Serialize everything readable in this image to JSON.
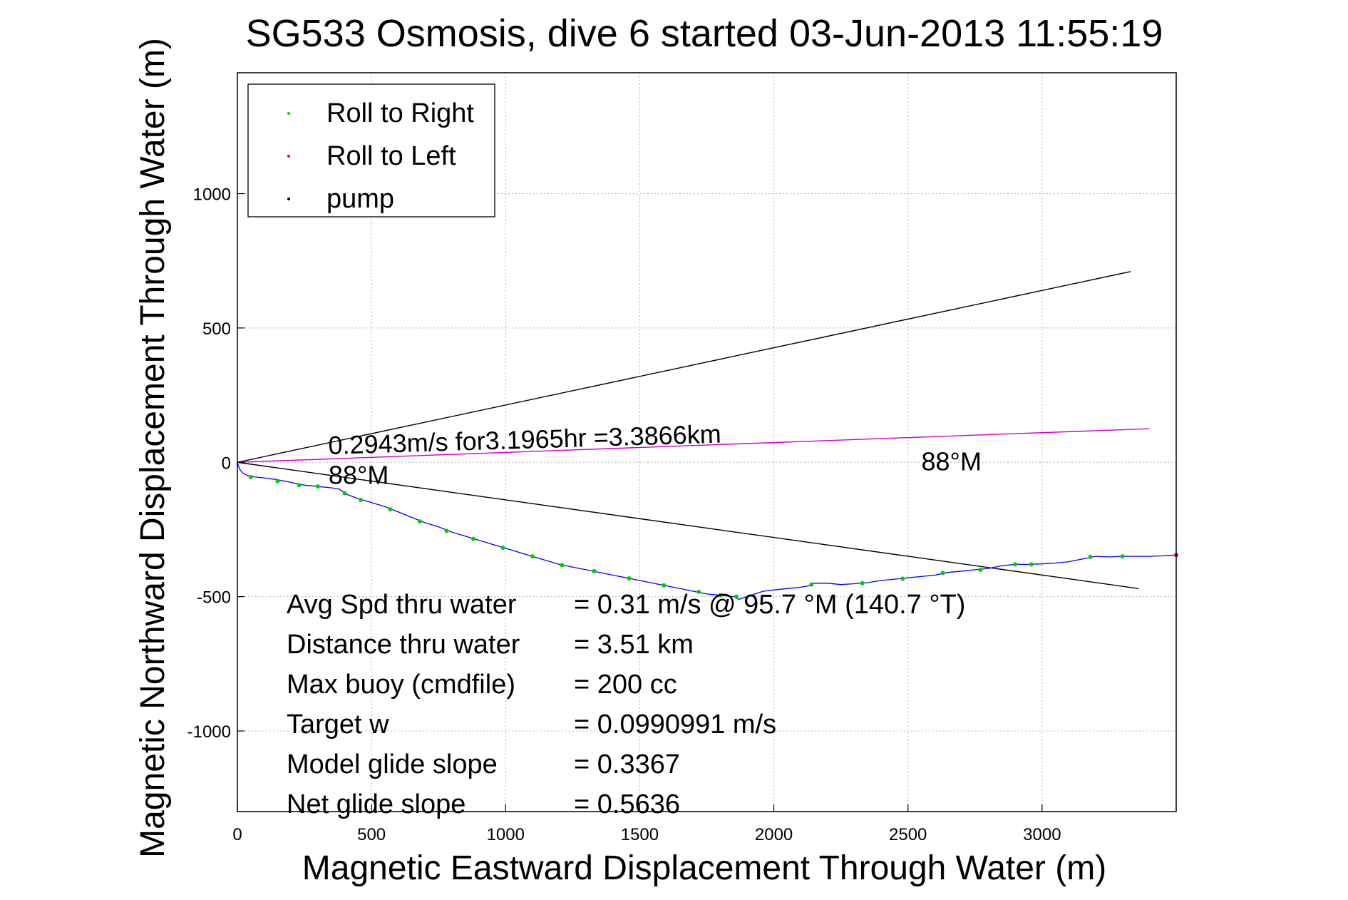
{
  "chart_data": {
    "type": "scatter",
    "title": "SG533 Osmosis, dive 6 started 03-Jun-2013 11:55:19",
    "xlabel": "Magnetic Eastward Displacement Through Water (m)",
    "ylabel": "Magnetic Northward Displacement Through Water (m)",
    "xlim": [
      0,
      3500
    ],
    "ylim": [
      -1300,
      1450
    ],
    "xticks": [
      0,
      500,
      1000,
      1500,
      2000,
      2500,
      3000
    ],
    "yticks": [
      -1000,
      -500,
      0,
      500,
      1000
    ],
    "grid": true,
    "legend_position": "top-left",
    "legend": [
      {
        "label": "Roll to Right",
        "color": "#00cc00"
      },
      {
        "label": "Roll to Left",
        "color": "#ff0000"
      },
      {
        "label": "pump",
        "color": "#000000"
      }
    ],
    "track": {
      "color": "#0000ff",
      "points": [
        [
          0,
          0
        ],
        [
          8,
          -25
        ],
        [
          20,
          -40
        ],
        [
          40,
          -50
        ],
        [
          70,
          -55
        ],
        [
          100,
          -58
        ],
        [
          150,
          -65
        ],
        [
          200,
          -75
        ],
        [
          250,
          -85
        ],
        [
          300,
          -90
        ],
        [
          350,
          -95
        ],
        [
          380,
          -100
        ],
        [
          410,
          -120
        ],
        [
          450,
          -135
        ],
        [
          500,
          -150
        ],
        [
          550,
          -165
        ],
        [
          600,
          -185
        ],
        [
          650,
          -205
        ],
        [
          700,
          -225
        ],
        [
          750,
          -240
        ],
        [
          800,
          -260
        ],
        [
          850,
          -275
        ],
        [
          900,
          -290
        ],
        [
          950,
          -305
        ],
        [
          1000,
          -320
        ],
        [
          1050,
          -335
        ],
        [
          1100,
          -350
        ],
        [
          1150,
          -365
        ],
        [
          1200,
          -380
        ],
        [
          1250,
          -390
        ],
        [
          1300,
          -400
        ],
        [
          1350,
          -410
        ],
        [
          1400,
          -420
        ],
        [
          1450,
          -430
        ],
        [
          1500,
          -440
        ],
        [
          1550,
          -450
        ],
        [
          1600,
          -460
        ],
        [
          1650,
          -470
        ],
        [
          1700,
          -480
        ],
        [
          1750,
          -490
        ],
        [
          1800,
          -495
        ],
        [
          1850,
          -500
        ],
        [
          1870,
          -510
        ],
        [
          1900,
          -500
        ],
        [
          1930,
          -490
        ],
        [
          1960,
          -480
        ],
        [
          2000,
          -475
        ],
        [
          2050,
          -470
        ],
        [
          2100,
          -465
        ],
        [
          2130,
          -460
        ],
        [
          2150,
          -450
        ],
        [
          2200,
          -450
        ],
        [
          2250,
          -455
        ],
        [
          2300,
          -452
        ],
        [
          2350,
          -448
        ],
        [
          2400,
          -440
        ],
        [
          2450,
          -435
        ],
        [
          2500,
          -430
        ],
        [
          2550,
          -425
        ],
        [
          2600,
          -420
        ],
        [
          2650,
          -410
        ],
        [
          2700,
          -405
        ],
        [
          2750,
          -400
        ],
        [
          2800,
          -395
        ],
        [
          2850,
          -385
        ],
        [
          2900,
          -380
        ],
        [
          2950,
          -380
        ],
        [
          3000,
          -378
        ],
        [
          3050,
          -375
        ],
        [
          3100,
          -370
        ],
        [
          3150,
          -360
        ],
        [
          3200,
          -350
        ],
        [
          3250,
          -352
        ],
        [
          3300,
          -350
        ],
        [
          3350,
          -350
        ],
        [
          3400,
          -350
        ],
        [
          3450,
          -348
        ],
        [
          3500,
          -345
        ]
      ]
    },
    "roll_right_markers": [
      [
        50,
        -55
      ],
      [
        150,
        -70
      ],
      [
        230,
        -85
      ],
      [
        300,
        -90
      ],
      [
        400,
        -115
      ],
      [
        460,
        -140
      ],
      [
        570,
        -175
      ],
      [
        680,
        -220
      ],
      [
        780,
        -255
      ],
      [
        880,
        -285
      ],
      [
        990,
        -318
      ],
      [
        1100,
        -350
      ],
      [
        1210,
        -383
      ],
      [
        1330,
        -405
      ],
      [
        1460,
        -432
      ],
      [
        1590,
        -458
      ],
      [
        1720,
        -482
      ],
      [
        1800,
        -495
      ],
      [
        1860,
        -500
      ],
      [
        2140,
        -455
      ],
      [
        2330,
        -450
      ],
      [
        2480,
        -433
      ],
      [
        2630,
        -412
      ],
      [
        2770,
        -400
      ],
      [
        2900,
        -380
      ],
      [
        2960,
        -380
      ],
      [
        3180,
        -352
      ],
      [
        3300,
        -350
      ]
    ],
    "roll_left_markers": [
      [
        3500,
        -345
      ]
    ],
    "lines": [
      {
        "name": "upper bound",
        "color": "#000000",
        "x": [
          0,
          3330
        ],
        "y": [
          0,
          710
        ]
      },
      {
        "name": "lower bound",
        "color": "#000000",
        "x": [
          0,
          3360
        ],
        "y": [
          0,
          -470
        ]
      },
      {
        "name": "heading",
        "color": "#cc00cc",
        "x": [
          0,
          3400
        ],
        "y": [
          0,
          125
        ]
      }
    ],
    "annotations": [
      {
        "text": "0.2943m/s for3.1965hr =3.3866km",
        "x": 340,
        "y": 30
      },
      {
        "text": "88°M",
        "x": 340,
        "y": -80
      },
      {
        "text": "88°M",
        "x": 2550,
        "y": -30
      }
    ],
    "stats": [
      {
        "label": "Avg Spd thru water",
        "value": "=  0.31 m/s @  95.7 °M (140.7 °T)"
      },
      {
        "label": "Distance thru water",
        "value": "=  3.51 km"
      },
      {
        "label": "Max buoy (cmdfile)",
        "value": "= 200 cc"
      },
      {
        "label": "Target w",
        "value": "= 0.0990991 m/s"
      },
      {
        "label": "Model glide slope",
        "value": "= 0.3367"
      },
      {
        "label": "Net glide slope",
        "value": "= 0.5636"
      }
    ]
  }
}
